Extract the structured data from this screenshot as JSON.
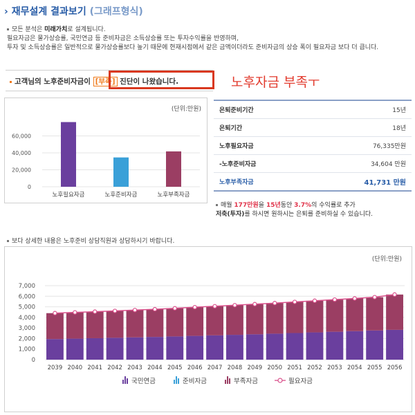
{
  "header": {
    "title": "재무설계 결과보기",
    "subtitle": "(그래프형식)"
  },
  "notes": {
    "line1_pre": "모든 분석은 ",
    "line1_bold": "미래가치",
    "line1_post": "로 설계됩니다.",
    "line2": "필요자금은 물가상승률, 국민연금 등 준비자금은 소득상승률 또는 투자수익률을 반영하며,",
    "line3": "투자 및 소득상승률은 일반적으로 물가상승률보다 높기 때문에 현재시점에서 같은 금액이더라도 준비자금의 상승 폭이 필요자금 보다 더 큽니다."
  },
  "notice": {
    "pre": "고객님의 노후준비자금이 ",
    "tag": "[부족]",
    "post": " 진단이 나왔습니다."
  },
  "annotation": "노후자금 부족ㅜ",
  "summary_chart": {
    "unit": "(단위:만원)",
    "chart_data": {
      "type": "bar",
      "categories": [
        "노후필요자금",
        "노후준비자금",
        "노후부족자금"
      ],
      "values": [
        76335,
        34604,
        41731
      ],
      "colors": [
        "#6a3f9e",
        "#3aa0d8",
        "#9b3e63"
      ],
      "ylim": [
        0,
        80000
      ],
      "yticks": [
        0,
        20000,
        40000,
        60000
      ],
      "ytick_labels": [
        "0",
        "20,000",
        "40,000",
        "60,000"
      ],
      "grid": true
    }
  },
  "table": [
    {
      "label": "은퇴준비기간",
      "value": "15년"
    },
    {
      "label": "은퇴기간",
      "value": "18년"
    },
    {
      "label": "노후필요자금",
      "value": "76,335만원"
    },
    {
      "label": "-노후준비자금",
      "value": "34,604 만원"
    },
    {
      "label": "노후부족자금",
      "value": "41,731 만원"
    }
  ],
  "advice": {
    "p1": "매월 ",
    "amount": "177만원",
    "p2": "을 ",
    "years": "15년",
    "p3": "동안 ",
    "rate": "3.7%",
    "p4": "의 수익률로 추가",
    "bold": "저축(투자)",
    "p5": "를 하시면 원하시는 은퇴를 준비하실 수 있습니다."
  },
  "detail_text": "보다 상세한 내용은 노후준비 상담직원과 상담하시기 바랍니다.",
  "yearly_chart": {
    "unit": "(단위:만원)",
    "chart_data": {
      "type": "bar",
      "stacked": true,
      "categories": [
        "2039",
        "2040",
        "2041",
        "2042",
        "2043",
        "2044",
        "2045",
        "2046",
        "2047",
        "2048",
        "2049",
        "2050",
        "2051",
        "2052",
        "2053",
        "2054",
        "2055",
        "2056"
      ],
      "series": [
        {
          "name": "국민연금",
          "color": "#6a3f9e",
          "values": [
            1950,
            1990,
            2030,
            2070,
            2110,
            2150,
            2200,
            2250,
            2300,
            2350,
            2400,
            2460,
            2520,
            2580,
            2640,
            2700,
            2760,
            2820
          ]
        },
        {
          "name": "부족자금",
          "color": "#9b3e63",
          "values": [
            2450,
            2480,
            2510,
            2540,
            2580,
            2620,
            2660,
            2710,
            2750,
            2800,
            2850,
            2890,
            2940,
            2990,
            3040,
            3090,
            3150,
            3340
          ]
        }
      ],
      "legend_series": [
        "국민연금",
        "준비자금",
        "부족자금",
        "필요자금"
      ],
      "legend_colors": [
        "#6a3f9e",
        "#3aa0d8",
        "#9b3e63",
        "#d94f8a"
      ],
      "line": {
        "name": "필요자금",
        "color": "#d94f8a",
        "values": [
          4400,
          4470,
          4540,
          4610,
          4690,
          4770,
          4860,
          4960,
          5050,
          5150,
          5250,
          5350,
          5460,
          5570,
          5680,
          5790,
          5910,
          6160
        ]
      },
      "ylim": [
        0,
        7000
      ],
      "yticks": [
        0,
        1000,
        2000,
        3000,
        4000,
        5000,
        6000,
        7000
      ],
      "ytick_labels": [
        "0",
        "1,000",
        "2,000",
        "3,000",
        "4,000",
        "5,000",
        "6,000",
        "7,000"
      ],
      "legend_position": "bottom",
      "grid": true
    }
  }
}
